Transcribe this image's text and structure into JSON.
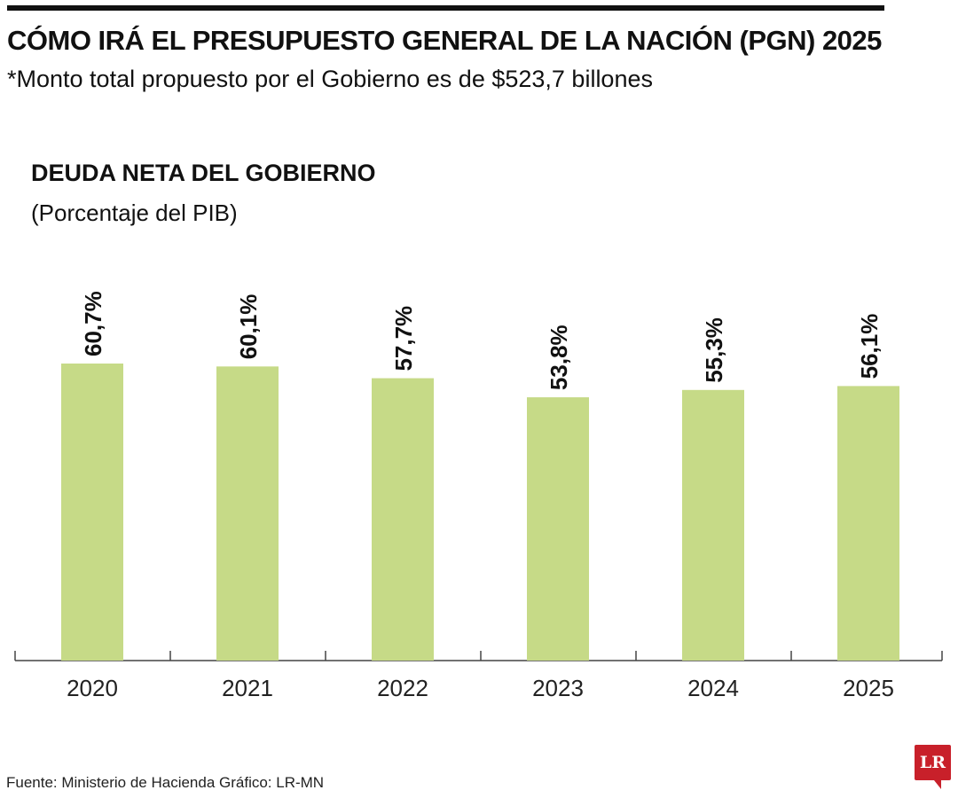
{
  "header": {
    "title": "CÓMO IRÁ EL PRESUPUESTO GENERAL DE LA NACIÓN (PGN) 2025",
    "subtitle": "*Monto total propuesto por el Gobierno es de $523,7 billones"
  },
  "chart_data": {
    "type": "bar",
    "title": "DEUDA NETA DEL GOBIERNO",
    "subtitle": "(Porcentaje del PIB)",
    "categories": [
      "2020",
      "2021",
      "2022",
      "2023",
      "2024",
      "2025"
    ],
    "values": [
      60.7,
      60.1,
      57.7,
      53.8,
      55.3,
      56.1
    ],
    "data_labels": [
      "60,7%",
      "60,1%",
      "57,7%",
      "53,8%",
      "55,3%",
      "56,1%"
    ],
    "ylim": [
      0,
      60.7
    ],
    "grid": false,
    "bar_color": "#c6da87"
  },
  "footer": {
    "source": "Fuente:  Ministerio de Hacienda   Gráfico: LR-MN",
    "logo_text": "LR",
    "logo_color": "#c8202a"
  }
}
